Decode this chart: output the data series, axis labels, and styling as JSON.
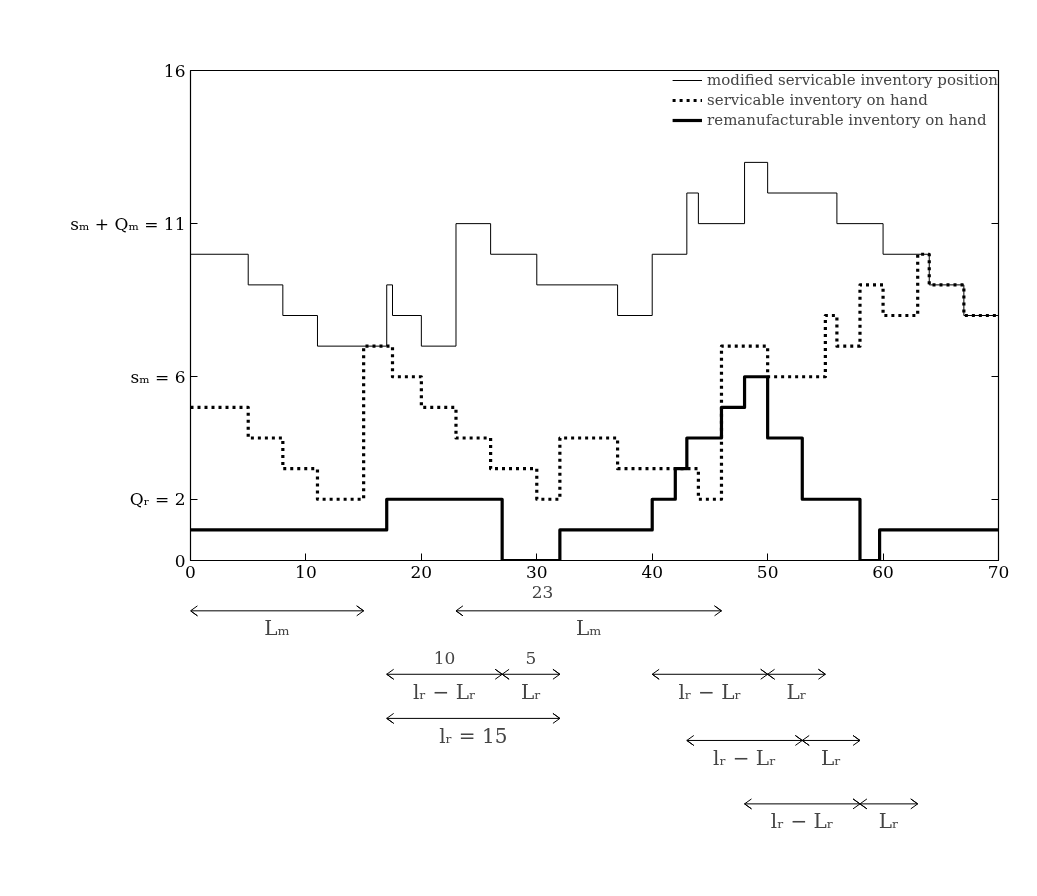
{
  "chart_data": {
    "type": "step",
    "series": [
      {
        "name": "modified servicable inventory position",
        "color": "#000000",
        "line_style": "solid",
        "x": [
          0,
          5,
          8,
          11,
          17,
          17.5,
          20,
          23,
          26,
          30,
          37,
          40,
          43,
          44,
          48,
          50,
          56,
          60,
          64,
          67,
          70
        ],
        "values": [
          10,
          9,
          8,
          7,
          9,
          8,
          7,
          11,
          10,
          9,
          8,
          10,
          12,
          11,
          13,
          12,
          11,
          10,
          9,
          8,
          8
        ]
      },
      {
        "name": "servicable inventory on hand",
        "color": "#000000",
        "line_style": "dotted",
        "x": [
          0,
          5,
          8,
          11,
          15,
          17.5,
          20,
          23,
          26,
          30,
          32,
          37,
          44,
          46,
          50,
          55,
          56,
          58,
          60,
          63,
          64,
          67,
          70
        ],
        "values": [
          5,
          4,
          3,
          2,
          7,
          6,
          5,
          4,
          3,
          2,
          4,
          3,
          2,
          7,
          6,
          8,
          7,
          9,
          8,
          10,
          9,
          8,
          8
        ]
      },
      {
        "name": "remanufacturable inventory on hand",
        "color": "#000000",
        "line_style": "solid",
        "x": [
          0,
          17,
          27,
          32,
          40,
          42,
          43,
          46,
          48,
          50,
          53,
          58,
          59.7,
          70
        ],
        "values": [
          1,
          2,
          0,
          1,
          2,
          3,
          4,
          5,
          6,
          4,
          2,
          0,
          1,
          1
        ]
      }
    ],
    "xlim": [
      0,
      70
    ],
    "xticks": [
      0,
      10,
      20,
      30,
      40,
      50,
      60,
      70
    ],
    "ylim": [
      0,
      16
    ],
    "yticks": [
      0,
      {
        "value": 2,
        "label": "Qᵣ = 2"
      },
      {
        "value": 6,
        "label": "sₘ = 6"
      },
      {
        "value": 11,
        "label": "sₘ + Qₘ = 11"
      },
      16
    ],
    "grid": false,
    "legend": "top right",
    "annotations": [
      "Lₘ",
      "Lₘ",
      "23",
      "10",
      "5",
      "lᵣ − Lᵣ",
      "Lᵣ",
      "lᵣ = 15",
      "lᵣ − Lᵣ",
      "Lᵣ",
      "lᵣ − Lᵣ",
      "Lᵣ",
      "lᵣ − Lᵣ",
      "Lᵣ"
    ]
  }
}
